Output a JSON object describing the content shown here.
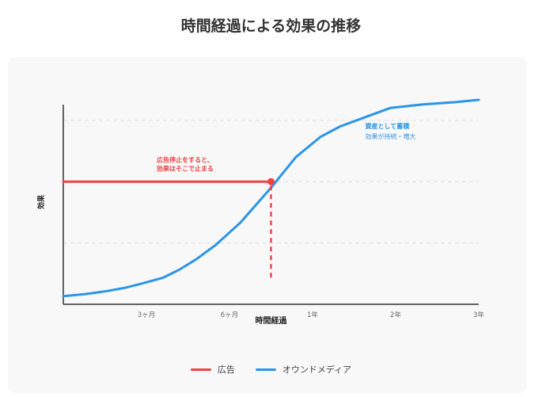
{
  "page": {
    "title": "時間経過による効果の推移"
  },
  "chart_data": {
    "type": "line",
    "title": "時間経過による効果の推移",
    "xlabel": "時間経過",
    "ylabel": "効果",
    "x_ticks": [
      "3ヶ月",
      "6ヶ月",
      "1年",
      "2年",
      "3年"
    ],
    "x_tick_values": [
      3,
      6,
      9,
      12,
      15
    ],
    "xlim": [
      0,
      15
    ],
    "ylim": [
      0,
      10
    ],
    "grid": true,
    "legend_position": "bottom-center",
    "series": [
      {
        "name": "広告",
        "color": "#ef4444",
        "style": "solid",
        "x": [
          0,
          7.5
        ],
        "y": [
          6,
          6
        ],
        "end_marker": true
      },
      {
        "name": "オウンドメディア",
        "color": "#2b95e8",
        "style": "solid",
        "x": [
          0,
          0.8,
          1.6,
          2.2,
          2.8,
          3.6,
          4.2,
          4.8,
          5.5,
          6.4,
          7.5,
          8.4,
          9.3,
          10.0,
          10.8,
          11.8,
          13.0,
          14.2,
          15.0
        ],
        "y": [
          0.4,
          0.5,
          0.65,
          0.8,
          1.0,
          1.3,
          1.7,
          2.2,
          2.9,
          4.0,
          5.7,
          7.2,
          8.2,
          8.7,
          9.1,
          9.6,
          9.78,
          9.89,
          10.0
        ]
      }
    ],
    "drop_line": {
      "x": 7.5,
      "from_y": 6,
      "to_y": 1.0,
      "color": "#ef4444"
    },
    "annotations": [
      {
        "lines": [
          "広告停止をすると、",
          "効果はそこで止まる"
        ],
        "color": "#ef4444",
        "x": 4.4,
        "y": 6.95
      },
      {
        "lines": [
          "資産として蓄積"
        ],
        "color": "#2b95e8",
        "x": 10.9,
        "y": 8.6,
        "bold": true
      },
      {
        "lines": [
          "効果が持続・増大"
        ],
        "color": "#2b95e8",
        "x": 10.9,
        "y": 8.1,
        "bold": false
      }
    ]
  }
}
